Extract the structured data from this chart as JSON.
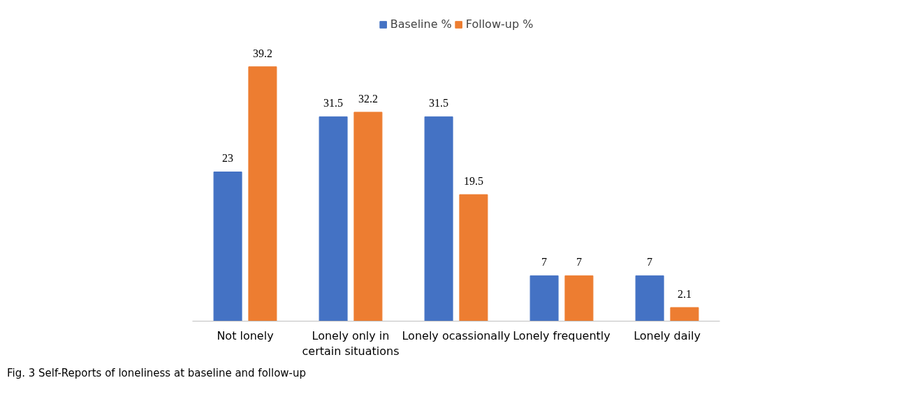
{
  "chart_data": {
    "type": "bar",
    "categories": [
      "Not lonely",
      "Lonely only in\ncertain situations",
      "Lonely ocassionally",
      "Lonely frequently",
      "Lonely daily"
    ],
    "series": [
      {
        "name": "Baseline %",
        "color": "#4472c4",
        "values": [
          23,
          31.5,
          31.5,
          7,
          7
        ]
      },
      {
        "name": "Follow-up %",
        "color": "#ed7d31",
        "values": [
          39.2,
          32.2,
          19.5,
          7,
          2.1
        ]
      }
    ],
    "data_labels": true,
    "legend": "top",
    "tick_labels": "x",
    "annotations": [
      "Fig. 3 Self-Reports of loneliness at baseline and follow-up"
    ]
  }
}
